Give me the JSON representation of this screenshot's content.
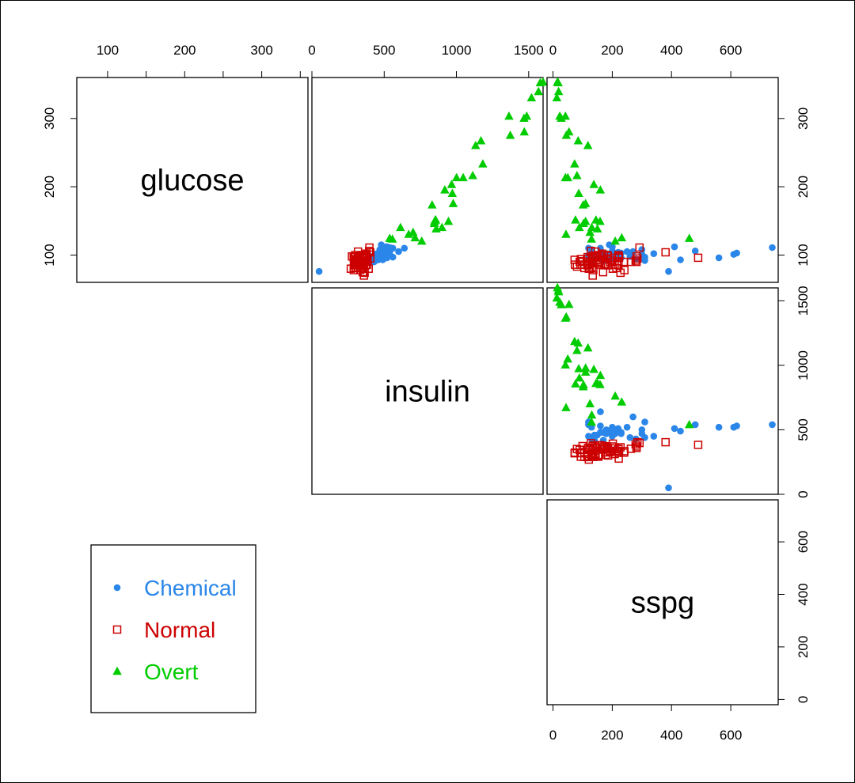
{
  "chart_data": {
    "type": "scatter",
    "variables": [
      "glucose",
      "insulin",
      "sspg"
    ],
    "axes": {
      "glucose": {
        "lim": [
          60,
          360
        ],
        "ticks": [
          100,
          200,
          300
        ],
        "minor": [
          150,
          250,
          350
        ]
      },
      "insulin": {
        "lim": [
          0,
          1600
        ],
        "ticks": [
          0,
          500,
          1000,
          1500
        ]
      },
      "sspg": {
        "lim": [
          -20,
          760
        ],
        "ticks": [
          0,
          200,
          400,
          600
        ]
      }
    },
    "legend": {
      "placement": "bottom-left",
      "entries": [
        {
          "name": "Chemical",
          "color": "#2a86e8",
          "shape": "circle"
        },
        {
          "name": "Normal",
          "color": "#cc0000",
          "shape": "open-square"
        },
        {
          "name": "Overt",
          "color": "#00cc00",
          "shape": "triangle"
        }
      ]
    },
    "series": [
      {
        "name": "Chemical",
        "points": [
          [
            115,
            480,
            190
          ],
          [
            110,
            560,
            120
          ],
          [
            108,
            520,
            130
          ],
          [
            106,
            490,
            200
          ],
          [
            105,
            520,
            250
          ],
          [
            104,
            510,
            220
          ],
          [
            103,
            480,
            160
          ],
          [
            102,
            470,
            180
          ],
          [
            101,
            500,
            300
          ],
          [
            100,
            460,
            150
          ],
          [
            99,
            470,
            210
          ],
          [
            98,
            440,
            260
          ],
          [
            97,
            480,
            170
          ],
          [
            96,
            470,
            230
          ],
          [
            95,
            450,
            200
          ],
          [
            94,
            430,
            280
          ],
          [
            93,
            460,
            140
          ],
          [
            92,
            440,
            310
          ],
          [
            91,
            420,
            170
          ],
          [
            95,
            500,
            180
          ],
          [
            100,
            540,
            120
          ],
          [
            105,
            600,
            270
          ],
          [
            110,
            640,
            160
          ],
          [
            98,
            420,
            140
          ],
          [
            102,
            450,
            340
          ],
          [
            97,
            560,
            310
          ],
          [
            99,
            530,
            160
          ],
          [
            103,
            480,
            230
          ],
          [
            108,
            470,
            300
          ],
          [
            112,
            520,
            200
          ],
          [
            90,
            430,
            130
          ],
          [
            96,
            450,
            120
          ],
          [
            111,
            540,
            740
          ],
          [
            103,
            530,
            620
          ],
          [
            101,
            520,
            610
          ],
          [
            96,
            520,
            560
          ],
          [
            106,
            540,
            480
          ],
          [
            112,
            510,
            410
          ],
          [
            93,
            490,
            430
          ],
          [
            76,
            50,
            390
          ]
        ]
      },
      {
        "name": "Normal",
        "points": [
          [
            80,
            356,
            124
          ],
          [
            97,
            289,
            117
          ],
          [
            105,
            319,
            143
          ],
          [
            90,
            356,
            199
          ],
          [
            90,
            323,
            240
          ],
          [
            86,
            381,
            157
          ],
          [
            100,
            350,
            221
          ],
          [
            85,
            301,
            186
          ],
          [
            97,
            379,
            142
          ],
          [
            97,
            296,
            131
          ],
          [
            91,
            353,
            221
          ],
          [
            87,
            306,
            178
          ],
          [
            78,
            290,
            136
          ],
          [
            90,
            371,
            200
          ],
          [
            86,
            312,
            208
          ],
          [
            80,
            393,
            202
          ],
          [
            90,
            364,
            152
          ],
          [
            99,
            359,
            185
          ],
          [
            85,
            296,
            116
          ],
          [
            90,
            345,
            123
          ],
          [
            90,
            378,
            136
          ],
          [
            88,
            304,
            134
          ],
          [
            95,
            347,
            184
          ],
          [
            90,
            327,
            192
          ],
          [
            92,
            386,
            279
          ],
          [
            74,
            365,
            228
          ],
          [
            98,
            365,
            145
          ],
          [
            100,
            352,
            172
          ],
          [
            86,
            325,
            179
          ],
          [
            98,
            321,
            222
          ],
          [
            70,
            360,
            134
          ],
          [
            99,
            336,
            143
          ],
          [
            75,
            352,
            169
          ],
          [
            90,
            353,
            263
          ],
          [
            85,
            373,
            174
          ],
          [
            99,
            376,
            134
          ],
          [
            100,
            367,
            182
          ],
          [
            78,
            335,
            241
          ],
          [
            106,
            396,
            128
          ],
          [
            98,
            277,
            222
          ],
          [
            102,
            378,
            165
          ],
          [
            90,
            360,
            282
          ],
          [
            94,
            291,
            94
          ],
          [
            80,
            269,
            121
          ],
          [
            93,
            318,
            73
          ],
          [
            86,
            328,
            106
          ],
          [
            85,
            334,
            221
          ],
          [
            96,
            356,
            209
          ],
          [
            88,
            291,
            153
          ],
          [
            87,
            360,
            118
          ],
          [
            94,
            313,
            115
          ],
          [
            93,
            306,
            157
          ],
          [
            86,
            319,
            93
          ],
          [
            86,
            349,
            123
          ],
          [
            96,
            332,
            223
          ],
          [
            86,
            323,
            74
          ],
          [
            89,
            323,
            134
          ],
          [
            83,
            351,
            81
          ],
          [
            100,
            300,
            152
          ],
          [
            81,
            290,
            106
          ],
          [
            92,
            312,
            144
          ],
          [
            93,
            336,
            193
          ],
          [
            90,
            345,
            90
          ],
          [
            95,
            404,
            285
          ],
          [
            98,
            371,
            282
          ],
          [
            104,
            404,
            380
          ],
          [
            96,
            383,
            490
          ],
          [
            81,
            337,
            214
          ],
          [
            111,
            398,
            292
          ],
          [
            89,
            310,
            130
          ],
          [
            82,
            303,
            131
          ],
          [
            91,
            374,
            100
          ]
        ]
      },
      {
        "name": "Overt",
        "points": [
          [
            300,
            1468,
            28
          ],
          [
            303,
            1487,
            23
          ],
          [
            125,
            714,
            232
          ],
          [
            280,
            1470,
            54
          ],
          [
            216,
            1113,
            81
          ],
          [
            190,
            972,
            87
          ],
          [
            151,
            854,
            76
          ],
          [
            303,
            1364,
            42
          ],
          [
            173,
            832,
            102
          ],
          [
            203,
            967,
            138
          ],
          [
            195,
            920,
            160
          ],
          [
            140,
            613,
            131
          ],
          [
            151,
            857,
            145
          ],
          [
            275,
            1373,
            45
          ],
          [
            260,
            1133,
            118
          ],
          [
            149,
            849,
            159
          ],
          [
            233,
            1183,
            73
          ],
          [
            146,
            847,
            103
          ],
          [
            124,
            538,
            460
          ],
          [
            213,
            1001,
            42
          ],
          [
            330,
            1520,
            13
          ],
          [
            123,
            557,
            130
          ],
          [
            130,
            670,
            44
          ],
          [
            120,
            760,
            210
          ],
          [
            138,
            860,
            150
          ],
          [
            339,
            1568,
            19
          ],
          [
            353,
            1600,
            15
          ],
          [
            149,
            945,
            110
          ],
          [
            352,
            1580,
            18
          ],
          [
            213,
            1047,
            50
          ],
          [
            140,
            900,
            89
          ],
          [
            267,
            1170,
            85
          ],
          [
            175,
            978,
            110
          ],
          [
            133,
            700,
            125
          ]
        ]
      }
    ]
  }
}
